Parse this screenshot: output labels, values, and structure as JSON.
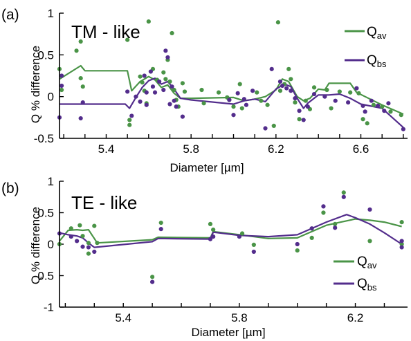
{
  "colors": {
    "green": "#4a9447",
    "purple": "#532d8c"
  },
  "chart_data": [
    {
      "type": "line",
      "panel_label": "(a)",
      "title": "TM - like",
      "xlabel": "Diameter [µm]",
      "ylabel": "Q % difference",
      "xlim": [
        5.18,
        6.82
      ],
      "ylim": [
        -0.5,
        1.0
      ],
      "xticks": [
        5.2,
        5.3,
        5.4,
        5.5,
        5.6,
        5.7,
        5.8,
        5.9,
        6.0,
        6.1,
        6.2,
        6.3,
        6.4,
        6.5,
        6.6,
        6.7,
        6.8
      ],
      "xtick_labels": [
        "5.4",
        "5.8",
        "6.2",
        "6.6"
      ],
      "xtick_label_values": [
        5.4,
        5.8,
        6.2,
        6.6
      ],
      "yticks": [
        -0.5,
        0,
        0.5,
        1
      ],
      "ytick_labels": [
        "-0.5",
        "0",
        "0.5",
        "1"
      ],
      "legend": {
        "position": "top-right"
      },
      "series": [
        {
          "name": "Q",
          "sub": "av",
          "color": "green",
          "line": [
            [
              5.18,
              0.21
            ],
            [
              5.28,
              0.37
            ],
            [
              5.3,
              0.31
            ],
            [
              5.5,
              0.31
            ],
            [
              5.52,
              0.07
            ],
            [
              5.56,
              0.18
            ],
            [
              5.6,
              0.24
            ],
            [
              5.63,
              0.2
            ],
            [
              5.66,
              0.11
            ],
            [
              5.69,
              0.14
            ],
            [
              5.72,
              0.04
            ],
            [
              5.75,
              -0.02
            ],
            [
              5.8,
              -0.02
            ],
            [
              6.0,
              -0.01
            ],
            [
              6.05,
              -0.05
            ],
            [
              6.1,
              -0.03
            ],
            [
              6.15,
              0.0
            ],
            [
              6.2,
              0.08
            ],
            [
              6.23,
              0.21
            ],
            [
              6.26,
              0.18
            ],
            [
              6.3,
              0.0
            ],
            [
              6.33,
              -0.05
            ],
            [
              6.36,
              -0.02
            ],
            [
              6.4,
              0.09
            ],
            [
              6.43,
              0.08
            ],
            [
              6.45,
              0.16
            ],
            [
              6.55,
              0.16
            ],
            [
              6.58,
              0.05
            ],
            [
              6.62,
              0.0
            ],
            [
              6.7,
              -0.1
            ],
            [
              6.8,
              -0.21
            ]
          ],
          "points": [
            [
              5.18,
              0.33
            ],
            [
              5.19,
              0.08
            ],
            [
              5.26,
              0.55
            ],
            [
              5.28,
              0.66
            ],
            [
              5.28,
              0.22
            ],
            [
              5.29,
              0.12
            ],
            [
              5.5,
              0.68
            ],
            [
              5.51,
              -0.28
            ],
            [
              5.51,
              -0.34
            ],
            [
              5.56,
              0.24
            ],
            [
              5.57,
              0.17
            ],
            [
              5.58,
              0.07
            ],
            [
              5.59,
              -0.08
            ],
            [
              5.6,
              0.9
            ],
            [
              5.62,
              0.33
            ],
            [
              5.64,
              0.2
            ],
            [
              5.67,
              0.29
            ],
            [
              5.68,
              0.21
            ],
            [
              5.69,
              0.44
            ],
            [
              5.7,
              0.18
            ],
            [
              5.71,
              0.76
            ],
            [
              5.72,
              0.08
            ],
            [
              5.73,
              -0.04
            ],
            [
              5.74,
              -0.12
            ],
            [
              5.76,
              0.16
            ],
            [
              5.77,
              0.06
            ],
            [
              5.85,
              0.08
            ],
            [
              5.86,
              -0.08
            ],
            [
              5.93,
              0.05
            ],
            [
              5.97,
              -0.01
            ],
            [
              5.98,
              -0.04
            ],
            [
              6.0,
              -0.12
            ],
            [
              6.03,
              0.15
            ],
            [
              6.04,
              -0.14
            ],
            [
              6.11,
              0.05
            ],
            [
              6.13,
              -0.05
            ],
            [
              6.16,
              -0.1
            ],
            [
              6.19,
              -0.35
            ],
            [
              6.21,
              0.89
            ],
            [
              6.22,
              0.07
            ],
            [
              6.24,
              0.15
            ],
            [
              6.26,
              0.33
            ],
            [
              6.27,
              0.21
            ],
            [
              6.29,
              -0.07
            ],
            [
              6.31,
              -0.27
            ],
            [
              6.34,
              -0.05
            ],
            [
              6.36,
              -0.15
            ],
            [
              6.38,
              0.11
            ],
            [
              6.44,
              0.08
            ],
            [
              6.46,
              -0.14
            ],
            [
              6.5,
              0.06
            ],
            [
              6.55,
              0.05
            ],
            [
              6.59,
              0.04
            ],
            [
              6.61,
              -0.27
            ],
            [
              6.63,
              -0.32
            ],
            [
              6.66,
              -0.1
            ],
            [
              6.7,
              -0.12
            ],
            [
              6.74,
              -0.18
            ],
            [
              6.79,
              -0.22
            ]
          ]
        },
        {
          "name": "Q",
          "sub": "bs",
          "color": "purple",
          "line": [
            [
              5.18,
              -0.09
            ],
            [
              5.3,
              -0.09
            ],
            [
              5.49,
              -0.09
            ],
            [
              5.51,
              -0.14
            ],
            [
              5.54,
              -0.01
            ],
            [
              5.57,
              0.11
            ],
            [
              5.6,
              0.19
            ],
            [
              5.63,
              0.22
            ],
            [
              5.66,
              0.15
            ],
            [
              5.69,
              0.18
            ],
            [
              5.72,
              0.09
            ],
            [
              5.75,
              -0.02
            ],
            [
              5.8,
              -0.04
            ],
            [
              6.0,
              -0.09
            ],
            [
              6.05,
              -0.05
            ],
            [
              6.1,
              -0.03
            ],
            [
              6.15,
              -0.06
            ],
            [
              6.2,
              0.09
            ],
            [
              6.24,
              0.15
            ],
            [
              6.27,
              0.12
            ],
            [
              6.3,
              -0.02
            ],
            [
              6.33,
              -0.14
            ],
            [
              6.35,
              -0.08
            ],
            [
              6.4,
              0.02
            ],
            [
              6.45,
              0.02
            ],
            [
              6.5,
              0.03
            ],
            [
              6.55,
              -0.02
            ],
            [
              6.6,
              -0.09
            ],
            [
              6.7,
              -0.14
            ],
            [
              6.8,
              -0.37
            ]
          ],
          "points": [
            [
              5.18,
              -0.25
            ],
            [
              5.19,
              0.25
            ],
            [
              5.19,
              0.13
            ],
            [
              5.28,
              -0.26
            ],
            [
              5.29,
              -0.07
            ],
            [
              5.5,
              0.06
            ],
            [
              5.52,
              -0.23
            ],
            [
              5.54,
              0.0
            ],
            [
              5.56,
              -0.06
            ],
            [
              5.58,
              0.25
            ],
            [
              5.59,
              0.05
            ],
            [
              5.59,
              -0.1
            ],
            [
              5.61,
              0.3
            ],
            [
              5.62,
              0.12
            ],
            [
              5.63,
              0.05
            ],
            [
              5.65,
              0.18
            ],
            [
              5.67,
              0.08
            ],
            [
              5.68,
              0.55
            ],
            [
              5.69,
              0.47
            ],
            [
              5.7,
              -0.09
            ],
            [
              5.71,
              0.12
            ],
            [
              5.72,
              -0.05
            ],
            [
              5.73,
              -0.12
            ],
            [
              5.76,
              -0.24
            ],
            [
              5.98,
              -0.04
            ],
            [
              6.0,
              -0.22
            ],
            [
              6.02,
              0.04
            ],
            [
              6.05,
              -0.03
            ],
            [
              6.06,
              -0.1
            ],
            [
              6.09,
              0.07
            ],
            [
              6.15,
              -0.38
            ],
            [
              6.18,
              0.33
            ],
            [
              6.22,
              0.18
            ],
            [
              6.23,
              0.13
            ],
            [
              6.25,
              0.1
            ],
            [
              6.27,
              0.07
            ],
            [
              6.29,
              -0.02
            ],
            [
              6.31,
              -0.17
            ],
            [
              6.33,
              -0.28
            ],
            [
              6.35,
              -0.12
            ],
            [
              6.38,
              0.03
            ],
            [
              6.43,
              0.0
            ],
            [
              6.48,
              -0.05
            ],
            [
              6.54,
              -0.07
            ],
            [
              6.58,
              0.1
            ],
            [
              6.61,
              -0.11
            ],
            [
              6.62,
              -0.18
            ],
            [
              6.65,
              -0.05
            ],
            [
              6.68,
              -0.11
            ],
            [
              6.71,
              -0.17
            ],
            [
              6.73,
              -0.08
            ],
            [
              6.8,
              -0.39
            ]
          ]
        }
      ]
    },
    {
      "type": "line",
      "panel_label": "(b)",
      "title": "TE - like",
      "xlabel": "Diameter [µm]",
      "ylabel": "Q % difference",
      "xlim": [
        5.18,
        6.38
      ],
      "ylim": [
        -1.0,
        1.0
      ],
      "xticks": [
        5.2,
        5.3,
        5.4,
        5.5,
        5.6,
        5.7,
        5.8,
        5.9,
        6.0,
        6.1,
        6.2,
        6.3
      ],
      "xtick_labels": [
        "5.4",
        "5.8",
        "6.2"
      ],
      "xtick_label_values": [
        5.4,
        5.8,
        6.2
      ],
      "yticks": [
        -1,
        -0.5,
        0,
        0.5,
        1
      ],
      "ytick_labels": [
        "-1",
        "-0.5",
        "0",
        "0.5",
        "1"
      ],
      "legend": {
        "position": "bottom-right"
      },
      "series": [
        {
          "name": "Q",
          "sub": "av",
          "color": "green",
          "line": [
            [
              5.18,
              0.05
            ],
            [
              5.21,
              0.22
            ],
            [
              5.24,
              0.23
            ],
            [
              5.26,
              0.22
            ],
            [
              5.28,
              0.23
            ],
            [
              5.31,
              0.02
            ],
            [
              5.5,
              0.07
            ],
            [
              5.52,
              0.11
            ],
            [
              5.7,
              0.1
            ],
            [
              5.71,
              0.2
            ],
            [
              5.8,
              0.15
            ],
            [
              5.9,
              0.09
            ],
            [
              6.0,
              0.1
            ],
            [
              6.05,
              0.2
            ],
            [
              6.1,
              0.3
            ],
            [
              6.15,
              0.35
            ],
            [
              6.2,
              0.4
            ],
            [
              6.25,
              0.38
            ],
            [
              6.3,
              0.35
            ],
            [
              6.36,
              0.28
            ]
          ],
          "points": [
            [
              5.18,
              0.0
            ],
            [
              5.22,
              0.25
            ],
            [
              5.25,
              0.3
            ],
            [
              5.26,
              0.13
            ],
            [
              5.28,
              0.02
            ],
            [
              5.28,
              -0.15
            ],
            [
              5.3,
              0.29
            ],
            [
              5.31,
              0.02
            ],
            [
              5.5,
              -0.52
            ],
            [
              5.53,
              0.34
            ],
            [
              5.7,
              0.32
            ],
            [
              5.71,
              0.23
            ],
            [
              5.81,
              0.17
            ],
            [
              5.85,
              -0.01
            ],
            [
              6.0,
              -0.1
            ],
            [
              6.05,
              0.1
            ],
            [
              6.09,
              0.5
            ],
            [
              6.13,
              0.32
            ],
            [
              6.16,
              0.82
            ],
            [
              6.25,
              0.05
            ],
            [
              6.36,
              0.35
            ],
            [
              6.36,
              0.0
            ]
          ]
        },
        {
          "name": "Q",
          "sub": "bs",
          "color": "purple",
          "line": [
            [
              5.18,
              0.18
            ],
            [
              5.21,
              0.15
            ],
            [
              5.24,
              0.13
            ],
            [
              5.26,
              0.1
            ],
            [
              5.28,
              0.02
            ],
            [
              5.3,
              -0.05
            ],
            [
              5.5,
              0.04
            ],
            [
              5.52,
              0.09
            ],
            [
              5.7,
              0.08
            ],
            [
              5.71,
              0.19
            ],
            [
              5.8,
              0.14
            ],
            [
              5.9,
              0.12
            ],
            [
              6.0,
              0.15
            ],
            [
              6.05,
              0.25
            ],
            [
              6.1,
              0.35
            ],
            [
              6.17,
              0.47
            ],
            [
              6.2,
              0.42
            ],
            [
              6.25,
              0.32
            ],
            [
              6.3,
              0.18
            ],
            [
              6.36,
              0.0
            ]
          ],
          "points": [
            [
              5.18,
              0.17
            ],
            [
              5.22,
              0.12
            ],
            [
              5.24,
              0.05
            ],
            [
              5.26,
              -0.04
            ],
            [
              5.28,
              -0.05
            ],
            [
              5.3,
              -0.12
            ],
            [
              5.5,
              -0.6
            ],
            [
              5.53,
              0.24
            ],
            [
              5.7,
              0.08
            ],
            [
              5.71,
              0.12
            ],
            [
              5.8,
              0.12
            ],
            [
              5.85,
              -0.12
            ],
            [
              6.0,
              0.0
            ],
            [
              6.05,
              0.25
            ],
            [
              6.09,
              0.6
            ],
            [
              6.13,
              0.26
            ],
            [
              6.16,
              0.75
            ],
            [
              6.25,
              0.55
            ],
            [
              6.36,
              0.05
            ],
            [
              6.36,
              -0.05
            ]
          ]
        }
      ]
    }
  ]
}
